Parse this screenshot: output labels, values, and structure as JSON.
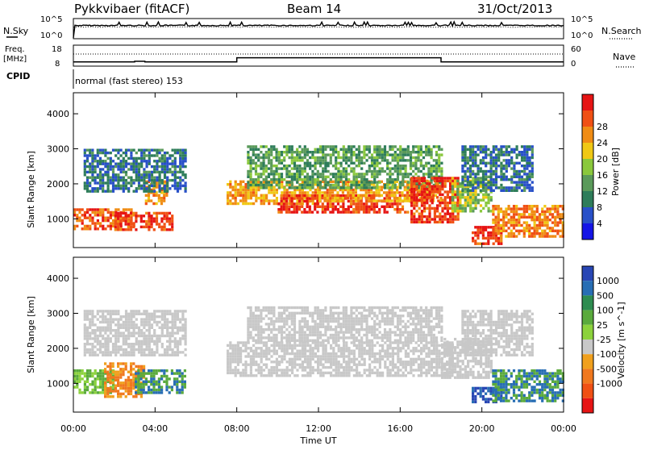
{
  "header": {
    "station": "Pykkvibaer (fitACF)",
    "beam": "Beam 14",
    "date": "31/Oct/2013"
  },
  "strips": {
    "nsky_label": "N.Sky",
    "nsky_ticks": [
      "10^5",
      "10^0"
    ],
    "nsearch_ticks": [
      "10^5",
      "10^0"
    ],
    "nsearch_label": "N.Search",
    "freq_label_1": "Freq.",
    "freq_label_2": "[MHz]",
    "freq_ticks": [
      "18",
      "8"
    ],
    "nave_ticks": [
      "60",
      "0"
    ],
    "nave_label": "Nave",
    "cpid_label": "CPID",
    "cpid_value": "normal (fast stereo) 153"
  },
  "axes": {
    "ylabel": "Slant Range [km]",
    "xlabel": "Time UT",
    "y_ticks": [
      "1000",
      "2000",
      "3000",
      "4000"
    ],
    "x_ticks": [
      "00:00",
      "04:00",
      "08:00",
      "12:00",
      "16:00",
      "20:00",
      "00:00"
    ]
  },
  "colorbars": {
    "power": {
      "label": "Power [dB]",
      "ticks": [
        "4",
        "8",
        "12",
        "16",
        "20",
        "24",
        "28"
      ],
      "colors": [
        "#1414e6",
        "#2850c8",
        "#2e7d5a",
        "#5a9a5a",
        "#8ac83c",
        "#f0c814",
        "#f08c14",
        "#f05014",
        "#e61414"
      ]
    },
    "velocity": {
      "label": "Velocity [m s^-1]",
      "ticks": [
        "1000",
        "500",
        "100",
        "25",
        "-25",
        "-100",
        "-500",
        "-1000"
      ],
      "colors": [
        "#2846b4",
        "#286eb4",
        "#2e8c50",
        "#5aaa3c",
        "#8cd23c",
        "#c8c8c8",
        "#f0a01e",
        "#f0781e",
        "#f05014",
        "#e61414"
      ]
    }
  },
  "chart_data": [
    {
      "type": "line",
      "title": "N.Sky / N.Search",
      "x": [
        0,
        24
      ],
      "series": [
        {
          "name": "N.Sky",
          "values": [
            1000,
            1000
          ]
        }
      ]
    },
    {
      "type": "line",
      "title": "Freq. [MHz] / Nave",
      "x": [
        0,
        2.5,
        3,
        3.5,
        8,
        18,
        24
      ],
      "series": [
        {
          "name": "Freq.",
          "values": [
            10,
            10,
            10.3,
            10,
            12,
            10,
            10
          ]
        },
        {
          "name": "Nave",
          "values": [
            12,
            12,
            12,
            12,
            12,
            12,
            12
          ]
        }
      ]
    },
    {
      "type": "heatmap",
      "title": "Power [dB]",
      "xlabel": "Time UT",
      "ylabel": "Slant Range [km]",
      "xlim": [
        0,
        24
      ],
      "ylim": [
        180,
        4600
      ],
      "bands": [
        {
          "t0": 0.0,
          "t1": 3.0,
          "r0": 700,
          "r1": 1300,
          "value": 26
        },
        {
          "t0": 2.0,
          "t1": 4.8,
          "r0": 700,
          "r1": 1200,
          "value": 28
        },
        {
          "t0": 3.5,
          "t1": 4.6,
          "r0": 1400,
          "r1": 2100,
          "value": 24
        },
        {
          "t0": 0.5,
          "t1": 5.5,
          "r0": 1800,
          "r1": 3000,
          "value": 8
        },
        {
          "t0": 7.5,
          "t1": 12.0,
          "r0": 1400,
          "r1": 2100,
          "value": 22
        },
        {
          "t0": 10.0,
          "t1": 16.5,
          "r0": 1200,
          "r1": 1700,
          "value": 28
        },
        {
          "t0": 12.0,
          "t1": 18.0,
          "r0": 1500,
          "r1": 2100,
          "value": 22
        },
        {
          "t0": 8.5,
          "t1": 18.0,
          "r0": 1900,
          "r1": 3100,
          "value": 12
        },
        {
          "t0": 16.5,
          "t1": 18.8,
          "r0": 900,
          "r1": 2200,
          "value": 28
        },
        {
          "t0": 18.5,
          "t1": 20.5,
          "r0": 1200,
          "r1": 2200,
          "value": 16
        },
        {
          "t0": 19.5,
          "t1": 21.0,
          "r0": 300,
          "r1": 800,
          "value": 28
        },
        {
          "t0": 20.5,
          "t1": 24.0,
          "r0": 500,
          "r1": 1400,
          "value": 24
        },
        {
          "t0": 19.0,
          "t1": 22.5,
          "r0": 1800,
          "r1": 3100,
          "value": 8
        }
      ]
    },
    {
      "type": "heatmap",
      "title": "Velocity [m s^-1]",
      "xlabel": "Time UT",
      "ylabel": "Slant Range [km]",
      "xlim": [
        0,
        24
      ],
      "ylim": [
        180,
        4600
      ],
      "bands": [
        {
          "t0": 0.0,
          "t1": 2.0,
          "r0": 700,
          "r1": 1400,
          "value": 100
        },
        {
          "t0": 1.5,
          "t1": 3.5,
          "r0": 600,
          "r1": 1600,
          "value": -100
        },
        {
          "t0": 3.0,
          "t1": 5.5,
          "r0": 700,
          "r1": 1400,
          "value": 500
        },
        {
          "t0": 0.5,
          "t1": 5.5,
          "r0": 1800,
          "r1": 3100,
          "value": 0
        },
        {
          "t0": 7.5,
          "t1": 18.5,
          "r0": 1200,
          "r1": 2200,
          "value": 0
        },
        {
          "t0": 8.5,
          "t1": 18.0,
          "r0": 2200,
          "r1": 3200,
          "value": 0
        },
        {
          "t0": 18.0,
          "t1": 20.5,
          "r0": 1200,
          "r1": 2300,
          "value": 0
        },
        {
          "t0": 19.5,
          "t1": 21.0,
          "r0": 500,
          "r1": 900,
          "value": 1000
        },
        {
          "t0": 20.5,
          "t1": 24.0,
          "r0": 500,
          "r1": 1400,
          "value": 500
        },
        {
          "t0": 19.0,
          "t1": 22.5,
          "r0": 1800,
          "r1": 3100,
          "value": 0
        }
      ]
    }
  ]
}
